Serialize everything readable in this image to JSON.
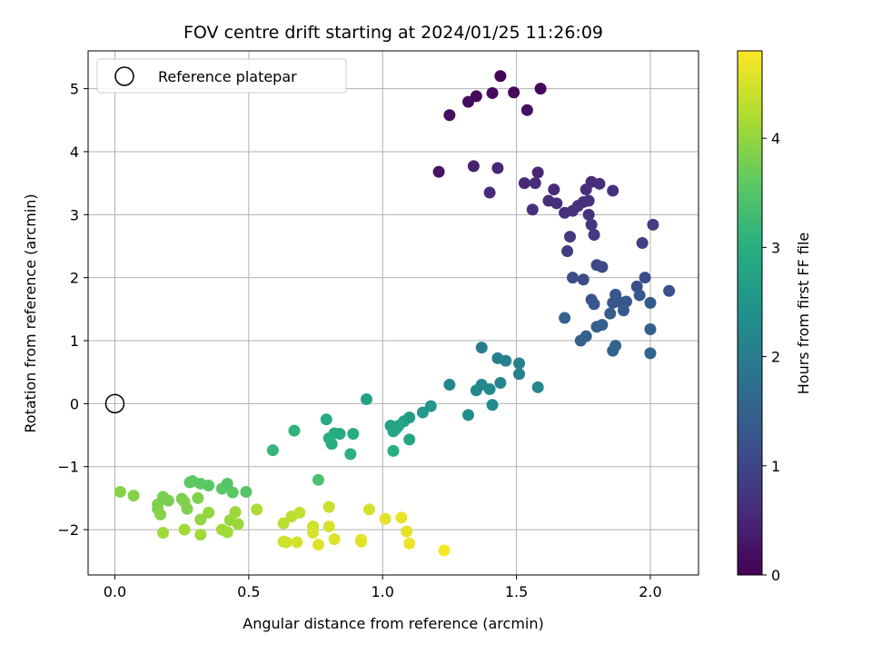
{
  "chart_data": {
    "type": "scatter",
    "title": "FOV centre drift starting at 2024/01/25 11:26:09",
    "xlabel": "Angular distance from reference (arcmin)",
    "ylabel": "Rotation from reference (arcmin)",
    "xlim": [
      -0.1,
      2.18
    ],
    "ylim": [
      -2.72,
      5.6
    ],
    "xticks": [
      0.0,
      0.5,
      1.0,
      1.5,
      2.0
    ],
    "xtick_labels": [
      "0.0",
      "0.5",
      "1.0",
      "1.5",
      "2.0"
    ],
    "yticks": [
      -2,
      -1,
      0,
      1,
      2,
      3,
      4,
      5
    ],
    "ytick_labels": [
      "−2",
      "−1",
      "0",
      "1",
      "2",
      "3",
      "4",
      "5"
    ],
    "grid": true,
    "legend": {
      "placement": "top-left",
      "entries": [
        "Reference platepar"
      ]
    },
    "reference_point": {
      "name": "Reference platepar",
      "x": 0.0,
      "y": 0.0
    },
    "colorbar": {
      "label": "Hours from first FF file",
      "colormap": "viridis",
      "range": [
        0,
        4.8
      ],
      "ticks": [
        0,
        1,
        2,
        3,
        4
      ],
      "tick_labels": [
        "0",
        "1",
        "2",
        "3",
        "4"
      ]
    },
    "points": [
      {
        "x": 1.44,
        "y": 5.2,
        "h": 0.05
      },
      {
        "x": 1.59,
        "y": 5.0,
        "h": 0.08
      },
      {
        "x": 1.35,
        "y": 4.88,
        "h": 0.1
      },
      {
        "x": 1.41,
        "y": 4.93,
        "h": 0.12
      },
      {
        "x": 1.49,
        "y": 4.94,
        "h": 0.14
      },
      {
        "x": 1.32,
        "y": 4.79,
        "h": 0.16
      },
      {
        "x": 1.25,
        "y": 4.58,
        "h": 0.18
      },
      {
        "x": 1.54,
        "y": 4.66,
        "h": 0.2
      },
      {
        "x": 1.21,
        "y": 3.68,
        "h": 0.25
      },
      {
        "x": 1.34,
        "y": 3.77,
        "h": 0.45
      },
      {
        "x": 1.43,
        "y": 3.74,
        "h": 0.5
      },
      {
        "x": 1.4,
        "y": 3.35,
        "h": 0.55
      },
      {
        "x": 1.58,
        "y": 3.67,
        "h": 0.5
      },
      {
        "x": 1.53,
        "y": 3.5,
        "h": 0.55
      },
      {
        "x": 1.57,
        "y": 3.5,
        "h": 0.6
      },
      {
        "x": 1.64,
        "y": 3.4,
        "h": 0.55
      },
      {
        "x": 1.56,
        "y": 3.08,
        "h": 0.65
      },
      {
        "x": 1.62,
        "y": 3.22,
        "h": 0.6
      },
      {
        "x": 1.65,
        "y": 3.18,
        "h": 0.62
      },
      {
        "x": 1.68,
        "y": 3.03,
        "h": 0.65
      },
      {
        "x": 1.71,
        "y": 3.06,
        "h": 0.68
      },
      {
        "x": 1.73,
        "y": 3.14,
        "h": 0.7
      },
      {
        "x": 1.75,
        "y": 3.2,
        "h": 0.66
      },
      {
        "x": 1.77,
        "y": 3.22,
        "h": 0.68
      },
      {
        "x": 1.78,
        "y": 3.52,
        "h": 0.6
      },
      {
        "x": 1.76,
        "y": 3.4,
        "h": 0.62
      },
      {
        "x": 1.81,
        "y": 3.49,
        "h": 0.62
      },
      {
        "x": 1.86,
        "y": 3.38,
        "h": 0.65
      },
      {
        "x": 1.77,
        "y": 3.0,
        "h": 0.7
      },
      {
        "x": 1.78,
        "y": 2.84,
        "h": 0.75
      },
      {
        "x": 1.7,
        "y": 2.65,
        "h": 0.8
      },
      {
        "x": 1.79,
        "y": 2.68,
        "h": 0.82
      },
      {
        "x": 1.69,
        "y": 2.42,
        "h": 0.85
      },
      {
        "x": 2.01,
        "y": 2.84,
        "h": 0.85
      },
      {
        "x": 1.97,
        "y": 2.55,
        "h": 0.9
      },
      {
        "x": 1.8,
        "y": 2.2,
        "h": 1.05
      },
      {
        "x": 1.82,
        "y": 2.17,
        "h": 1.05
      },
      {
        "x": 1.71,
        "y": 2.0,
        "h": 1.1
      },
      {
        "x": 1.75,
        "y": 1.97,
        "h": 1.1
      },
      {
        "x": 1.98,
        "y": 2.0,
        "h": 1.1
      },
      {
        "x": 1.95,
        "y": 1.86,
        "h": 1.15
      },
      {
        "x": 2.07,
        "y": 1.79,
        "h": 1.15
      },
      {
        "x": 1.78,
        "y": 1.65,
        "h": 1.25
      },
      {
        "x": 1.79,
        "y": 1.58,
        "h": 1.25
      },
      {
        "x": 1.87,
        "y": 1.73,
        "h": 1.3
      },
      {
        "x": 1.86,
        "y": 1.6,
        "h": 1.3
      },
      {
        "x": 1.88,
        "y": 1.62,
        "h": 1.3
      },
      {
        "x": 1.91,
        "y": 1.62,
        "h": 1.3
      },
      {
        "x": 1.96,
        "y": 1.72,
        "h": 1.3
      },
      {
        "x": 2.0,
        "y": 1.6,
        "h": 1.35
      },
      {
        "x": 1.9,
        "y": 1.48,
        "h": 1.35
      },
      {
        "x": 1.85,
        "y": 1.43,
        "h": 1.4
      },
      {
        "x": 1.68,
        "y": 1.36,
        "h": 1.5
      },
      {
        "x": 1.8,
        "y": 1.22,
        "h": 1.45
      },
      {
        "x": 1.82,
        "y": 1.25,
        "h": 1.45
      },
      {
        "x": 2.0,
        "y": 1.18,
        "h": 1.45
      },
      {
        "x": 1.76,
        "y": 1.07,
        "h": 1.5
      },
      {
        "x": 1.74,
        "y": 1.0,
        "h": 1.5
      },
      {
        "x": 1.87,
        "y": 0.92,
        "h": 1.55
      },
      {
        "x": 1.86,
        "y": 0.84,
        "h": 1.55
      },
      {
        "x": 2.0,
        "y": 0.8,
        "h": 1.55
      },
      {
        "x": 1.37,
        "y": 0.89,
        "h": 2.0
      },
      {
        "x": 1.43,
        "y": 0.72,
        "h": 2.05
      },
      {
        "x": 1.46,
        "y": 0.68,
        "h": 2.05
      },
      {
        "x": 1.51,
        "y": 0.64,
        "h": 2.1
      },
      {
        "x": 1.51,
        "y": 0.47,
        "h": 2.1
      },
      {
        "x": 1.25,
        "y": 0.3,
        "h": 2.2
      },
      {
        "x": 1.37,
        "y": 0.3,
        "h": 2.2
      },
      {
        "x": 1.44,
        "y": 0.33,
        "h": 2.2
      },
      {
        "x": 1.35,
        "y": 0.21,
        "h": 2.25
      },
      {
        "x": 1.4,
        "y": 0.23,
        "h": 2.25
      },
      {
        "x": 1.58,
        "y": 0.26,
        "h": 2.2
      },
      {
        "x": 1.41,
        "y": -0.02,
        "h": 2.3
      },
      {
        "x": 1.32,
        "y": -0.18,
        "h": 2.35
      },
      {
        "x": 0.94,
        "y": 0.07,
        "h": 2.75
      },
      {
        "x": 1.18,
        "y": -0.04,
        "h": 2.5
      },
      {
        "x": 1.15,
        "y": -0.14,
        "h": 2.55
      },
      {
        "x": 1.1,
        "y": -0.22,
        "h": 2.6
      },
      {
        "x": 1.08,
        "y": -0.28,
        "h": 2.65
      },
      {
        "x": 1.03,
        "y": -0.35,
        "h": 2.7
      },
      {
        "x": 1.05,
        "y": -0.4,
        "h": 2.75
      },
      {
        "x": 1.06,
        "y": -0.35,
        "h": 2.8
      },
      {
        "x": 1.04,
        "y": -0.44,
        "h": 2.8
      },
      {
        "x": 0.79,
        "y": -0.25,
        "h": 2.9
      },
      {
        "x": 0.82,
        "y": -0.47,
        "h": 2.9
      },
      {
        "x": 0.84,
        "y": -0.48,
        "h": 2.9
      },
      {
        "x": 0.89,
        "y": -0.48,
        "h": 2.95
      },
      {
        "x": 0.8,
        "y": -0.55,
        "h": 3.0
      },
      {
        "x": 0.81,
        "y": -0.64,
        "h": 3.0
      },
      {
        "x": 0.88,
        "y": -0.8,
        "h": 3.05
      },
      {
        "x": 1.04,
        "y": -0.75,
        "h": 3.0
      },
      {
        "x": 1.1,
        "y": -0.57,
        "h": 2.85
      },
      {
        "x": 0.67,
        "y": -0.43,
        "h": 3.1
      },
      {
        "x": 0.59,
        "y": -0.74,
        "h": 3.15
      },
      {
        "x": 0.76,
        "y": -1.21,
        "h": 3.4
      },
      {
        "x": 0.02,
        "y": -1.4,
        "h": 3.9
      },
      {
        "x": 0.07,
        "y": -1.46,
        "h": 3.9
      },
      {
        "x": 0.16,
        "y": -1.6,
        "h": 3.85
      },
      {
        "x": 0.16,
        "y": -1.67,
        "h": 3.85
      },
      {
        "x": 0.17,
        "y": -1.76,
        "h": 3.9
      },
      {
        "x": 0.2,
        "y": -1.54,
        "h": 3.8
      },
      {
        "x": 0.18,
        "y": -1.48,
        "h": 3.8
      },
      {
        "x": 0.25,
        "y": -1.51,
        "h": 3.8
      },
      {
        "x": 0.26,
        "y": -1.56,
        "h": 3.85
      },
      {
        "x": 0.27,
        "y": -1.67,
        "h": 3.85
      },
      {
        "x": 0.28,
        "y": -1.25,
        "h": 3.6
      },
      {
        "x": 0.29,
        "y": -1.23,
        "h": 3.6
      },
      {
        "x": 0.32,
        "y": -1.27,
        "h": 3.55
      },
      {
        "x": 0.35,
        "y": -1.3,
        "h": 3.55
      },
      {
        "x": 0.4,
        "y": -1.35,
        "h": 3.55
      },
      {
        "x": 0.42,
        "y": -1.27,
        "h": 3.5
      },
      {
        "x": 0.44,
        "y": -1.41,
        "h": 3.55
      },
      {
        "x": 0.49,
        "y": -1.4,
        "h": 3.5
      },
      {
        "x": 0.31,
        "y": -1.5,
        "h": 3.85
      },
      {
        "x": 0.35,
        "y": -1.73,
        "h": 4.0
      },
      {
        "x": 0.32,
        "y": -1.84,
        "h": 4.0
      },
      {
        "x": 0.45,
        "y": -1.72,
        "h": 4.05
      },
      {
        "x": 0.43,
        "y": -1.85,
        "h": 4.05
      },
      {
        "x": 0.46,
        "y": -1.91,
        "h": 4.05
      },
      {
        "x": 0.18,
        "y": -2.05,
        "h": 4.1
      },
      {
        "x": 0.26,
        "y": -2.0,
        "h": 4.1
      },
      {
        "x": 0.32,
        "y": -2.08,
        "h": 4.1
      },
      {
        "x": 0.4,
        "y": -2.0,
        "h": 4.1
      },
      {
        "x": 0.42,
        "y": -2.04,
        "h": 4.1
      },
      {
        "x": 0.53,
        "y": -1.68,
        "h": 4.2
      },
      {
        "x": 0.63,
        "y": -1.9,
        "h": 4.3
      },
      {
        "x": 0.66,
        "y": -1.79,
        "h": 4.3
      },
      {
        "x": 0.69,
        "y": -1.73,
        "h": 4.35
      },
      {
        "x": 0.63,
        "y": -2.19,
        "h": 4.45
      },
      {
        "x": 0.64,
        "y": -2.2,
        "h": 4.45
      },
      {
        "x": 0.68,
        "y": -2.2,
        "h": 4.5
      },
      {
        "x": 0.74,
        "y": -1.95,
        "h": 4.45
      },
      {
        "x": 0.74,
        "y": -2.05,
        "h": 4.5
      },
      {
        "x": 0.76,
        "y": -2.24,
        "h": 4.55
      },
      {
        "x": 0.8,
        "y": -1.64,
        "h": 4.4
      },
      {
        "x": 0.8,
        "y": -1.95,
        "h": 4.5
      },
      {
        "x": 0.82,
        "y": -2.15,
        "h": 4.55
      },
      {
        "x": 0.92,
        "y": -2.16,
        "h": 4.6
      },
      {
        "x": 0.92,
        "y": -2.19,
        "h": 4.6
      },
      {
        "x": 0.95,
        "y": -1.68,
        "h": 4.5
      },
      {
        "x": 1.01,
        "y": -1.83,
        "h": 4.6
      },
      {
        "x": 1.07,
        "y": -1.81,
        "h": 4.65
      },
      {
        "x": 1.09,
        "y": -2.03,
        "h": 4.6
      },
      {
        "x": 1.1,
        "y": -2.22,
        "h": 4.65
      },
      {
        "x": 1.23,
        "y": -2.33,
        "h": 4.75
      }
    ]
  }
}
